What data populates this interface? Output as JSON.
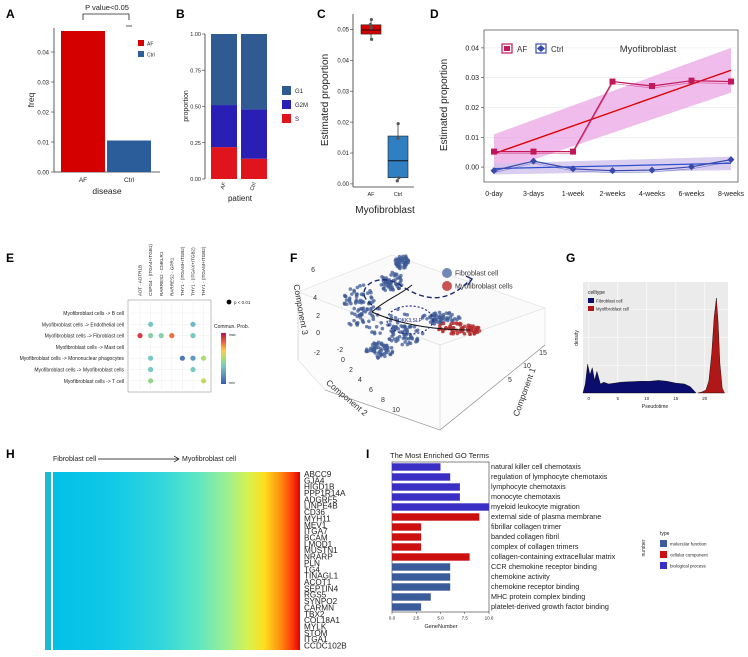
{
  "panel_letters": [
    "A",
    "B",
    "C",
    "D",
    "E",
    "F",
    "G",
    "H",
    "I"
  ],
  "colors": {
    "af": "#d40000",
    "ctrl": "#2b5d9b",
    "g1": "#2f5a92",
    "g2m": "#2a1fb5",
    "s": "#e0141c",
    "go_mf": "#3b5c9a",
    "go_cc": "#cc1010",
    "go_bp": "#3a2ec4",
    "pink": "#e9a6e6",
    "blue_dark": "#0b0d6e"
  },
  "chart_data": [
    {
      "panel": "A",
      "type": "bar",
      "categories": [
        "AF",
        "Ctrl"
      ],
      "values": [
        0.047,
        0.0105
      ],
      "xlabel": "disease",
      "ylabel": "freq",
      "yticks": [
        "0.00",
        "0.01",
        "0.02",
        "0.03",
        "0.04"
      ],
      "ylim": [
        0,
        0.048
      ],
      "legend": [
        "AF",
        "Ctrl"
      ],
      "annotation": "P value<0.05"
    },
    {
      "panel": "B",
      "type": "bar",
      "stacked": true,
      "categories": [
        "AF",
        "Ctrl"
      ],
      "series": [
        {
          "name": "S",
          "values": [
            0.22,
            0.14
          ]
        },
        {
          "name": "G2M",
          "values": [
            0.29,
            0.34
          ]
        },
        {
          "name": "G1",
          "values": [
            0.49,
            0.52
          ]
        }
      ],
      "xlabel": "patient",
      "ylabel": "proportion",
      "yticks": [
        "0.00",
        "0.25",
        "0.50",
        "0.75",
        "1.00"
      ],
      "ylim": [
        0,
        1
      ],
      "legend": [
        "G1",
        "G2M",
        "S"
      ]
    },
    {
      "panel": "C",
      "type": "box",
      "categories": [
        "AF",
        "Ctrl"
      ],
      "boxes": [
        {
          "name": "AF",
          "min": 0.0465,
          "q1": 0.0485,
          "median": 0.0498,
          "q3": 0.0515,
          "max": 0.053,
          "points": [
            0.0532,
            0.0516,
            0.0505,
            0.0468
          ]
        },
        {
          "name": "Ctrl",
          "min": 0.001,
          "q1": 0.002,
          "median": 0.0075,
          "q3": 0.0155,
          "max": 0.02,
          "points": [
            0.0195,
            0.0148,
            0.002,
            0.001
          ]
        }
      ],
      "xlabel": "Myofibroblast",
      "ylabel": "Estimated proportion",
      "yticks": [
        "0.00",
        "0.01",
        "0.02",
        "0.03",
        "0.04",
        "0.05"
      ],
      "ylim": [
        -0.001,
        0.055
      ]
    },
    {
      "panel": "D",
      "type": "line",
      "title": "Myofibroblast",
      "x": [
        "0-day",
        "3-days",
        "1-week",
        "2-weeks",
        "4-weeks",
        "6-weeks",
        "8-weeks"
      ],
      "series": [
        {
          "name": "AF",
          "values": [
            0.0052,
            0.0052,
            0.0052,
            0.0287,
            0.0272,
            0.029,
            0.0287
          ]
        },
        {
          "name": "Ctrl",
          "values": [
            -0.0012,
            0.002,
            -0.0006,
            -0.0012,
            -0.001,
            0.0001,
            0.0025
          ]
        }
      ],
      "trend_af": [
        0.0045,
        0.0325
      ],
      "band_af_low": [
        -0.002,
        0.025
      ],
      "band_af_high": [
        0.011,
        0.04
      ],
      "trend_ctrl": [
        -0.0005,
        0.0013
      ],
      "xlabel": "",
      "ylabel": "Estimated proportion",
      "yticks": [
        "0.00",
        "0.01",
        "0.02",
        "0.03",
        "0.04"
      ],
      "ylim": [
        -0.005,
        0.046
      ],
      "legend": [
        "AF",
        "Ctrl"
      ]
    },
    {
      "panel": "E",
      "type": "scatter",
      "rows": [
        "Myofibroblast cells -> B cell",
        "Myofibroblast cells -> Endothelial cell",
        "Myofibroblast cells -> Fibroblast cell",
        "Myofibroblast cells -> Mast cell",
        "Myofibroblast cells -> Mononuclear phagocytes",
        "Myofibroblast cells -> Myofibroblast cells",
        "Myofibroblast cells -> T cell"
      ],
      "columns": [
        "ADT - ADTR1B",
        "CSPG4 - (ITGA4+ITGB1)",
        "RARRES2 - CMKLR1",
        "RARRES2 - GPR1",
        "THY1 - (ITGAM+ITGB2)",
        "THY1 - (ITGAX+ITGB2)",
        "THY1 - (ITGAM+ITGB2)"
      ],
      "dots": [
        {
          "r": 1,
          "c": 1,
          "v": 0.35
        },
        {
          "r": 1,
          "c": 5,
          "v": 0.3
        },
        {
          "r": 2,
          "c": 0,
          "v": 0.9
        },
        {
          "r": 2,
          "c": 1,
          "v": 0.4
        },
        {
          "r": 2,
          "c": 2,
          "v": 0.4
        },
        {
          "r": 2,
          "c": 3,
          "v": 0.8
        },
        {
          "r": 2,
          "c": 5,
          "v": 0.35
        },
        {
          "r": 4,
          "c": 1,
          "v": 0.35
        },
        {
          "r": 4,
          "c": 4,
          "v": 0.1
        },
        {
          "r": 4,
          "c": 5,
          "v": 0.2
        },
        {
          "r": 4,
          "c": 6,
          "v": 0.5
        },
        {
          "r": 5,
          "c": 1,
          "v": 0.35
        },
        {
          "r": 5,
          "c": 5,
          "v": 0.35
        },
        {
          "r": 6,
          "c": 1,
          "v": 0.45
        },
        {
          "r": 6,
          "c": 6,
          "v": 0.55
        }
      ],
      "legend_p": "p < 0.01",
      "legend_title": "Commun. Prob.",
      "legend_max": "max",
      "legend_min": "min"
    },
    {
      "panel": "F",
      "type": "scatter",
      "legend": [
        "Fibroblast cell",
        "Myofibroblast cells"
      ],
      "annotation": "DKK3,SLP",
      "axis_labels": [
        "Component 1",
        "Component 2",
        "Component 3"
      ],
      "ticks_c1": [
        "5",
        "10",
        "15"
      ],
      "ticks_c2": [
        "-2",
        "0",
        "2",
        "4",
        "6",
        "8",
        "10"
      ],
      "ticks_c3": [
        "-2",
        "0",
        "2",
        "4",
        "6"
      ]
    },
    {
      "panel": "G",
      "type": "area",
      "legend_title": "celltype",
      "legend": [
        "Fibroblast cell",
        "Myofibroblast cell"
      ],
      "xlabel": "Pseudotime",
      "ylabel": "density",
      "xticks": [
        "0",
        "5",
        "10",
        "15",
        "20"
      ],
      "xlim": [
        -1,
        24
      ]
    },
    {
      "panel": "H",
      "type": "heatmap",
      "header_left": "Fibroblast cell",
      "header_right": "Myofibroblast cell",
      "genes": [
        "ABCC9",
        "GJA4",
        "HIGD1B",
        "PPP1R14A",
        "ADGRF5",
        "LINPE4B",
        "CD36",
        "MYH11",
        "MEV1",
        "ITGA7",
        "BCAM",
        "LMOD1",
        "MUSTN1",
        "NRARP",
        "PLN",
        "TG4",
        "TINAGL1",
        "ACOT1",
        "SEPTIN4",
        "RGS5",
        "SYNPO2",
        "CARMN",
        "TBX2",
        "COL18A1",
        "MYLK",
        "STOM",
        "ITGA1",
        "CCDC102B"
      ]
    },
    {
      "panel": "I",
      "type": "bar",
      "title": "The Most Enriched GO Terms",
      "categories": [
        "natural killer cell chemotaxis",
        "regulation of lymphocyte chemotaxis",
        "lymphocyte chemotaxis",
        "monocyte chemotaxis",
        "myeloid leukocyte migration",
        "external side of plasma membrane",
        "fibrillar collagen trimer",
        "banded collagen fibril",
        "complex of collagen trimers",
        "collagen-containing extracellular matrix",
        "CCR chemokine receptor binding",
        "chemokine activity",
        "chemokine receptor binding",
        "MHC protein complex binding",
        "platelet-derived growth factor binding"
      ],
      "values": [
        5,
        6,
        7,
        7,
        10,
        9,
        3,
        3,
        3,
        8,
        6,
        6,
        6,
        4,
        3
      ],
      "types": [
        "bp",
        "bp",
        "bp",
        "bp",
        "bp",
        "cc",
        "cc",
        "cc",
        "cc",
        "cc",
        "mf",
        "mf",
        "mf",
        "mf",
        "mf"
      ],
      "xlabel": "GeneNumber",
      "xticks": [
        "0.0",
        "2.5",
        "5.0",
        "7.5",
        "10.0"
      ],
      "xlim": [
        0,
        10
      ],
      "legend_title": "type",
      "legend": [
        "molecular function",
        "cellular component",
        "biological process"
      ],
      "side_label": "number"
    }
  ]
}
